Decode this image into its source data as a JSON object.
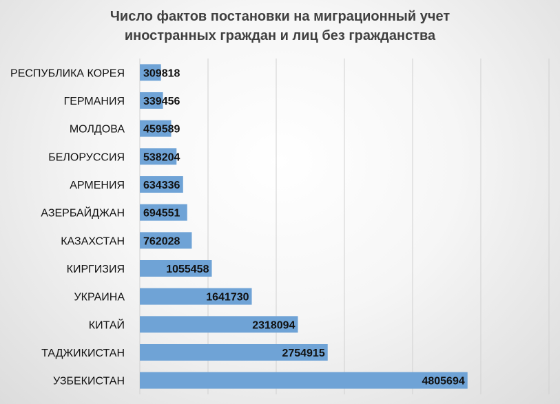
{
  "chart_data": {
    "type": "bar",
    "orientation": "horizontal",
    "title_lines": [
      "Число фактов постановки на миграционный учет",
      "иностранных граждан и лиц без гражданства"
    ],
    "categories": [
      "РЕСПУБЛИКА КОРЕЯ",
      "ГЕРМАНИЯ",
      "МОЛДОВА",
      "БЕЛОРУССИЯ",
      "АРМЕНИЯ",
      "АЗЕРБАЙДЖАН",
      "КАЗАХСТАН",
      "КИРГИЗИЯ",
      "УКРАИНА",
      "КИТАЙ",
      "ТАДЖИКИСТАН",
      "УЗБЕКИСТАН"
    ],
    "values": [
      309818,
      339456,
      459589,
      538204,
      634336,
      694551,
      762028,
      1055458,
      1641730,
      2318094,
      2754915,
      4805694
    ],
    "xlim": [
      0,
      6000000
    ],
    "grid": "vertical",
    "bar_color": "#6fa3d6",
    "legend": "none"
  }
}
